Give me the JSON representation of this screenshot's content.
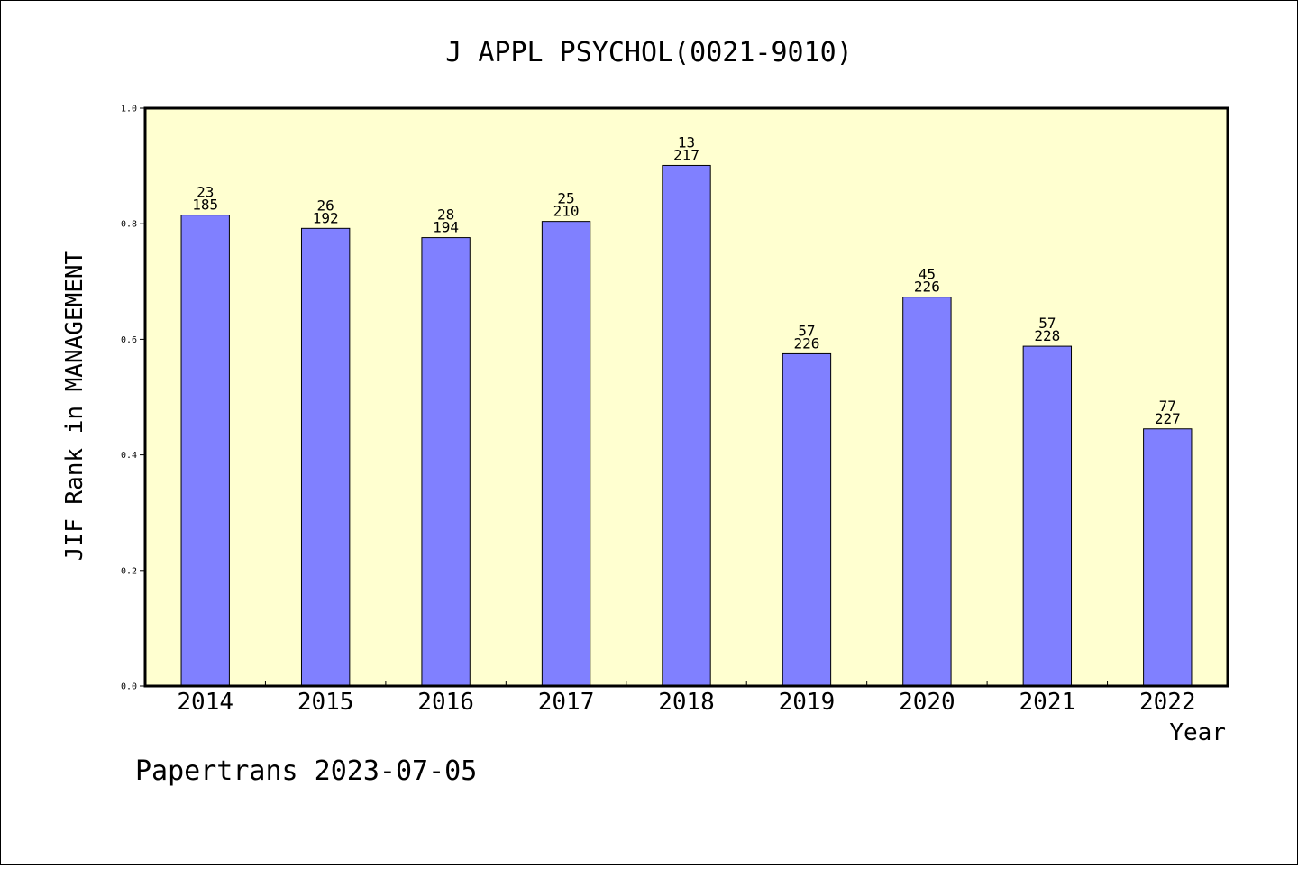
{
  "chart_data": {
    "type": "bar",
    "title": "J APPL PSYCHOL(0021-9010)",
    "xlabel": "Year",
    "ylabel": "JIF Rank in MANAGEMENT",
    "ylim": [
      0,
      1.0
    ],
    "yticks": [
      "0.0",
      "0.2",
      "0.4",
      "0.6",
      "0.8",
      "1.0"
    ],
    "categories": [
      "2014",
      "2015",
      "2016",
      "2017",
      "2018",
      "2019",
      "2020",
      "2021",
      "2022"
    ],
    "values": [
      0.815,
      0.792,
      0.776,
      0.804,
      0.901,
      0.575,
      0.673,
      0.588,
      0.445
    ],
    "labels": [
      {
        "rank": "23",
        "total": "185"
      },
      {
        "rank": "26",
        "total": "192"
      },
      {
        "rank": "28",
        "total": "194"
      },
      {
        "rank": "25",
        "total": "210"
      },
      {
        "rank": "13",
        "total": "217"
      },
      {
        "rank": "57",
        "total": "226"
      },
      {
        "rank": "45",
        "total": "226"
      },
      {
        "rank": "57",
        "total": "228"
      },
      {
        "rank": "77",
        "total": "227"
      }
    ],
    "colors": {
      "plot_background": "#ffffd0",
      "bar_fill": "#8080ff"
    },
    "grid": false,
    "legend": "none"
  },
  "footer": {
    "text": "Papertrans 2023-07-05"
  }
}
